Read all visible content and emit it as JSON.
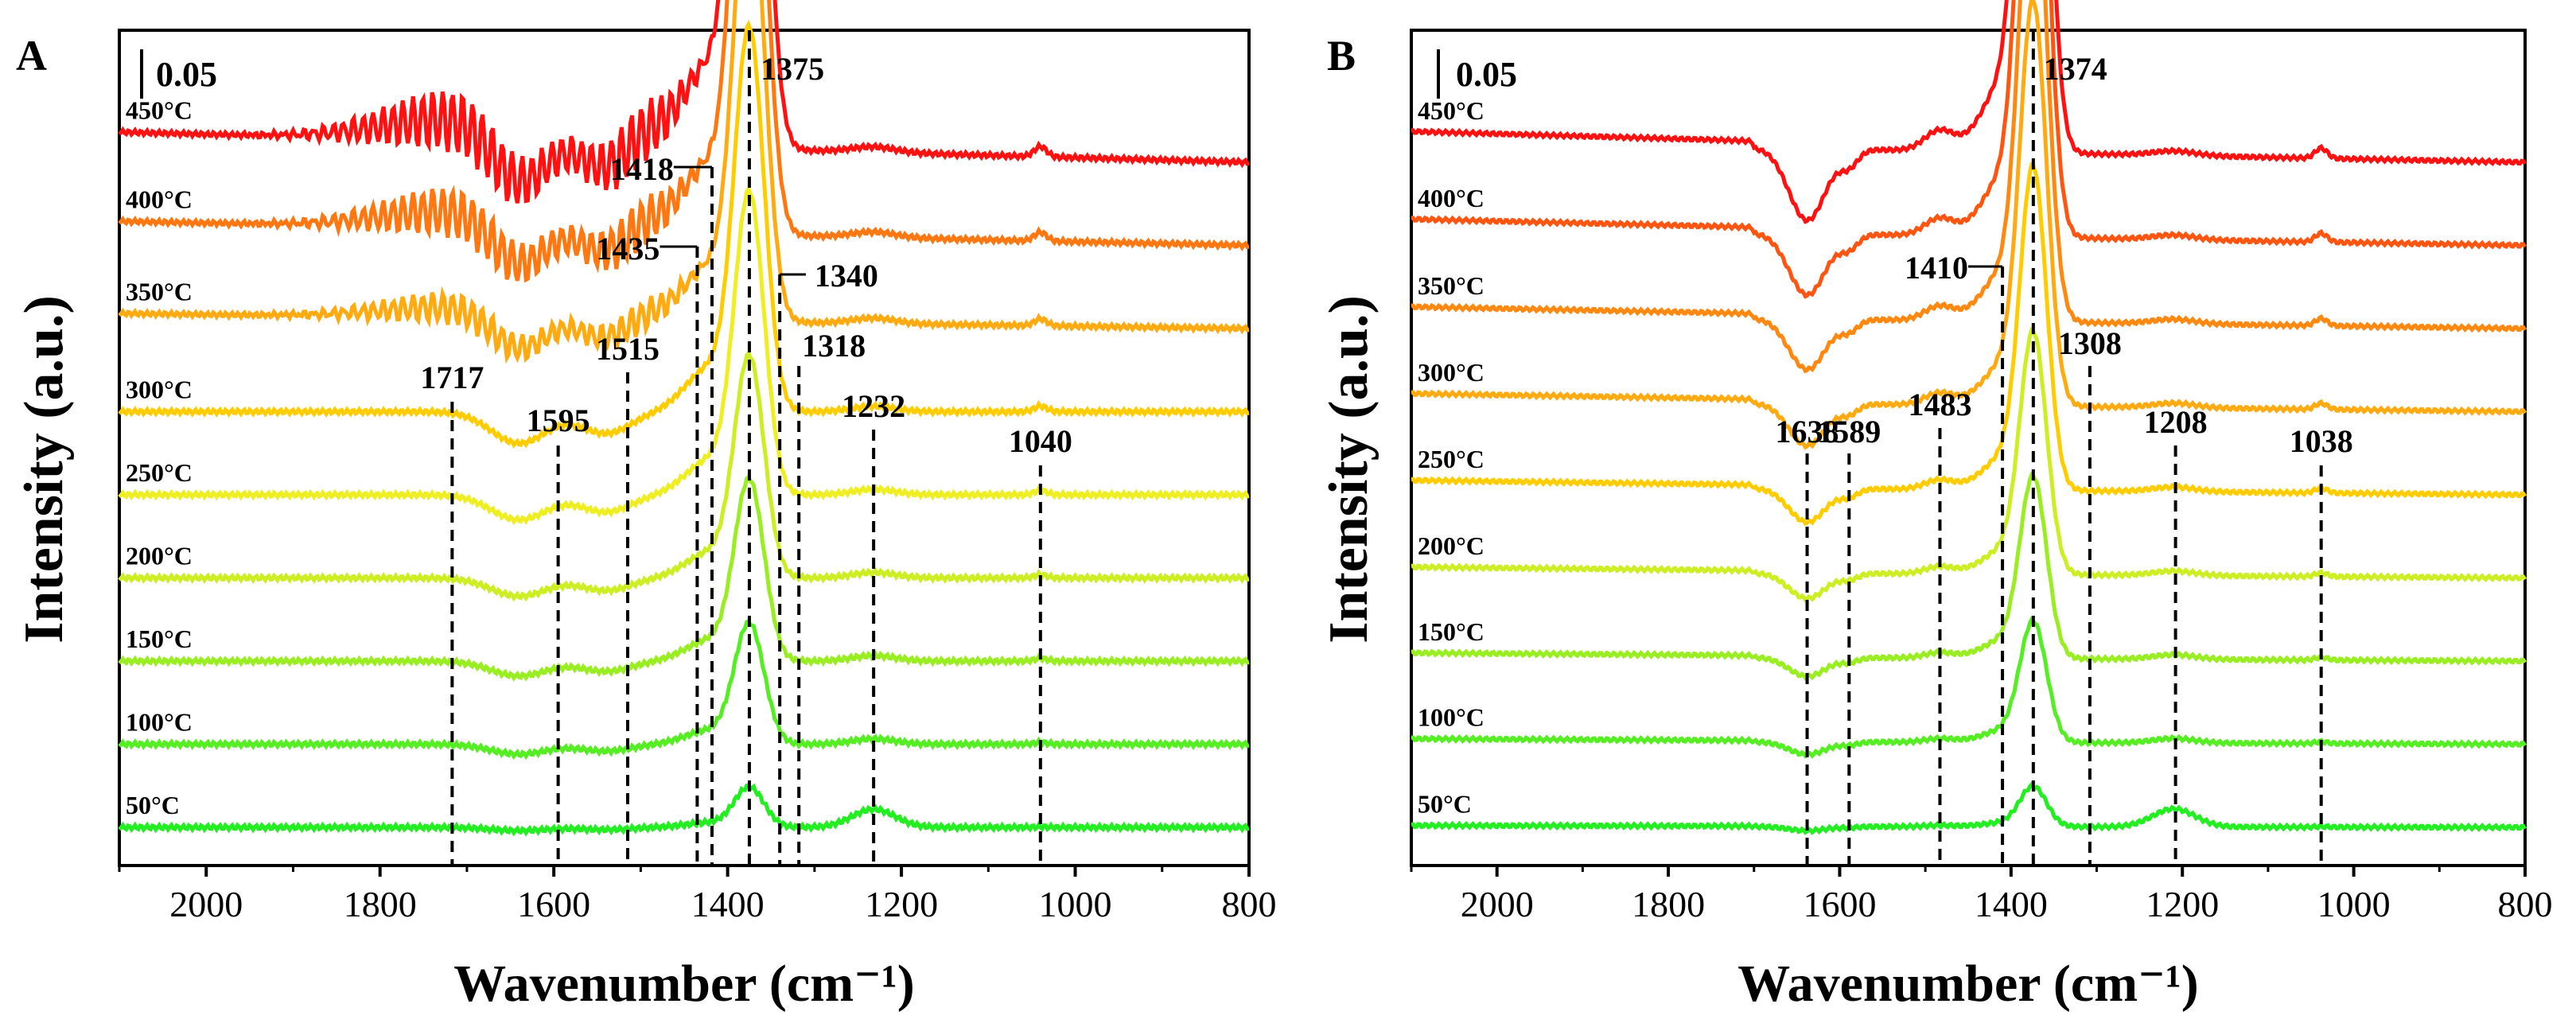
{
  "chart_data": [
    {
      "type": "line",
      "panel": "A",
      "scale_bar_label": "0.05",
      "xlabel": "Wavenumber (cm⁻¹)",
      "ylabel": "Intensity (a.u.)",
      "xlim": [
        2100,
        800
      ],
      "xticks": [
        "2000",
        "1800",
        "1600",
        "1400",
        "1200",
        "1000",
        "800"
      ],
      "series": [
        {
          "name": "50°C",
          "color": "#22ee22",
          "baseline": 0.0,
          "scale": 0.1,
          "noise": 0.0
        },
        {
          "name": "100°C",
          "color": "#55ee22",
          "baseline": 0.055,
          "scale": 0.3,
          "noise": 0.0
        },
        {
          "name": "150°C",
          "color": "#99ee22",
          "baseline": 0.11,
          "scale": 0.45,
          "noise": 0.0
        },
        {
          "name": "200°C",
          "color": "#ccee22",
          "baseline": 0.165,
          "scale": 0.55,
          "noise": 0.0
        },
        {
          "name": "250°C",
          "color": "#eeee22",
          "baseline": 0.22,
          "scale": 0.75,
          "noise": 0.0
        },
        {
          "name": "300°C",
          "color": "#ffcc00",
          "baseline": 0.275,
          "scale": 0.95,
          "noise": 0.0
        },
        {
          "name": "350°C",
          "color": "#ffaa11",
          "baseline": 0.33,
          "scale": 1.15,
          "noise": 0.5
        },
        {
          "name": "400°C",
          "color": "#ff7711",
          "baseline": 0.385,
          "scale": 1.45,
          "noise": 0.8
        },
        {
          "name": "450°C",
          "color": "#ff1111",
          "baseline": 0.44,
          "scale": 1.7,
          "noise": 1.0
        }
      ],
      "peaks": [
        {
          "x": 1717,
          "label": "1717"
        },
        {
          "x": 1595,
          "label": "1595"
        },
        {
          "x": 1515,
          "label": "1515"
        },
        {
          "x": 1435,
          "label": "1435"
        },
        {
          "x": 1418,
          "label": "1418"
        },
        {
          "x": 1375,
          "label": "1375"
        },
        {
          "x": 1340,
          "label": "1340"
        },
        {
          "x": 1318,
          "label": "1318"
        },
        {
          "x": 1232,
          "label": "1232"
        },
        {
          "x": 1040,
          "label": "1040"
        }
      ]
    },
    {
      "type": "line",
      "panel": "B",
      "scale_bar_label": "0.05",
      "xlabel": "Wavenumber (cm⁻¹)",
      "ylabel": "Intensity (a.u.)",
      "xlim": [
        2100,
        800
      ],
      "xticks": [
        "2000",
        "1800",
        "1600",
        "1400",
        "1200",
        "1000",
        "800"
      ],
      "series": [
        {
          "name": "50°C",
          "color": "#22ee22",
          "baseline": 0.0,
          "scale": 0.1
        },
        {
          "name": "100°C",
          "color": "#55ee22",
          "baseline": 0.055,
          "scale": 0.3
        },
        {
          "name": "150°C",
          "color": "#99ee22",
          "baseline": 0.11,
          "scale": 0.45
        },
        {
          "name": "200°C",
          "color": "#ccee22",
          "baseline": 0.165,
          "scale": 0.6
        },
        {
          "name": "250°C",
          "color": "#ffcc00",
          "baseline": 0.22,
          "scale": 0.8
        },
        {
          "name": "300°C",
          "color": "#ffaa11",
          "baseline": 0.275,
          "scale": 1.0
        },
        {
          "name": "350°C",
          "color": "#ff8811",
          "baseline": 0.33,
          "scale": 1.2
        },
        {
          "name": "400°C",
          "color": "#ff5511",
          "baseline": 0.385,
          "scale": 1.45
        },
        {
          "name": "450°C",
          "color": "#ff1111",
          "baseline": 0.44,
          "scale": 1.7
        }
      ],
      "peaks": [
        {
          "x": 1638,
          "label": "1638"
        },
        {
          "x": 1589,
          "label": "1589"
        },
        {
          "x": 1483,
          "label": "1483"
        },
        {
          "x": 1410,
          "label": "1410"
        },
        {
          "x": 1374,
          "label": "1374"
        },
        {
          "x": 1308,
          "label": "1308"
        },
        {
          "x": 1208,
          "label": "1208"
        },
        {
          "x": 1038,
          "label": "1038"
        }
      ]
    }
  ]
}
